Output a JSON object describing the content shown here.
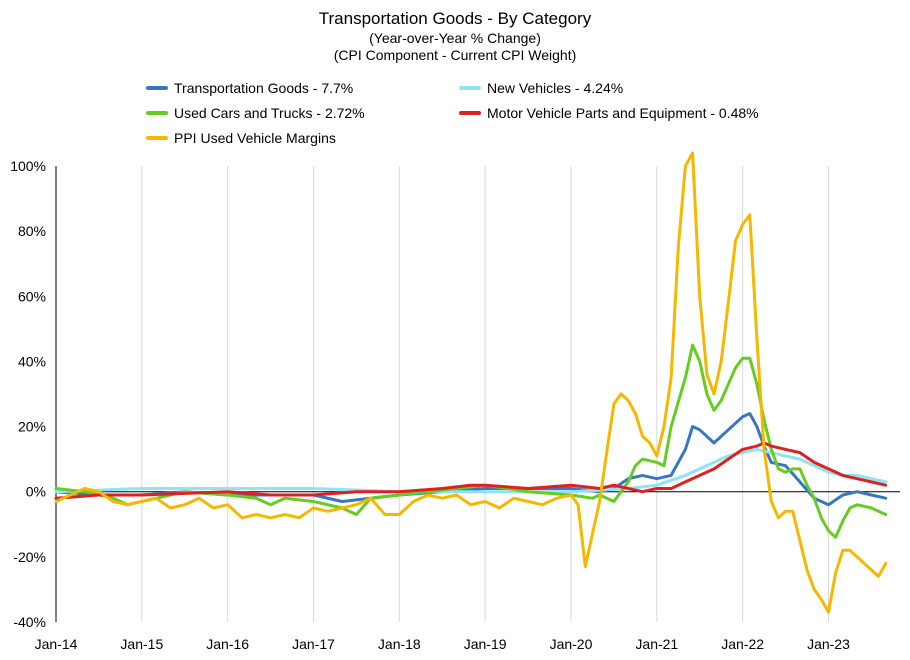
{
  "chart_data": {
    "type": "line",
    "title": "Transportation Goods - By Category",
    "subtitle1": "(Year-over-Year % Change)",
    "subtitle2": "(CPI Component - Current CPI Weight)",
    "xlabel": "",
    "ylabel": "",
    "ylim": [
      -40,
      100
    ],
    "ytick_values": [
      -40,
      -20,
      0,
      20,
      40,
      60,
      80,
      100
    ],
    "ytick_labels": [
      "-40%",
      "-20%",
      "0%",
      "20%",
      "40%",
      "60%",
      "80%",
      "100%"
    ],
    "xlim": [
      0,
      118
    ],
    "xtick_values": [
      0,
      12,
      24,
      36,
      48,
      60,
      72,
      84,
      96,
      108
    ],
    "xtick_labels": [
      "Jan-14",
      "Jan-15",
      "Jan-16",
      "Jan-17",
      "Jan-18",
      "Jan-19",
      "Jan-20",
      "Jan-21",
      "Jan-22",
      "Jan-23"
    ],
    "x_unit": "months since Jan-14",
    "grid": "vertical",
    "legend_position": "top",
    "series": [
      {
        "name": "Transportation Goods - 7.7%",
        "color": "#3a75c4",
        "points": [
          [
            0,
            0
          ],
          [
            6,
            -1
          ],
          [
            12,
            -1
          ],
          [
            18,
            0
          ],
          [
            24,
            -1
          ],
          [
            30,
            -1
          ],
          [
            36,
            -1
          ],
          [
            40,
            -3
          ],
          [
            44,
            -2
          ],
          [
            48,
            -1
          ],
          [
            54,
            0
          ],
          [
            60,
            1
          ],
          [
            66,
            1
          ],
          [
            72,
            1
          ],
          [
            76,
            0
          ],
          [
            78,
            1
          ],
          [
            80,
            4
          ],
          [
            82,
            5
          ],
          [
            84,
            4
          ],
          [
            86,
            5
          ],
          [
            88,
            13
          ],
          [
            89,
            20
          ],
          [
            90,
            19
          ],
          [
            92,
            15
          ],
          [
            94,
            19
          ],
          [
            96,
            23
          ],
          [
            97,
            24
          ],
          [
            98,
            20
          ],
          [
            99,
            14
          ],
          [
            100,
            9
          ],
          [
            102,
            8
          ],
          [
            104,
            3
          ],
          [
            106,
            -2
          ],
          [
            108,
            -4
          ],
          [
            110,
            -1
          ],
          [
            112,
            0
          ],
          [
            114,
            -1
          ],
          [
            116,
            -2
          ]
        ]
      },
      {
        "name": "New Vehicles - 4.24%",
        "color": "#8ee4f4",
        "points": [
          [
            0,
            0
          ],
          [
            12,
            1
          ],
          [
            24,
            1
          ],
          [
            36,
            1
          ],
          [
            48,
            0
          ],
          [
            60,
            0
          ],
          [
            72,
            0
          ],
          [
            80,
            1
          ],
          [
            84,
            2
          ],
          [
            88,
            5
          ],
          [
            90,
            7
          ],
          [
            92,
            9
          ],
          [
            94,
            11
          ],
          [
            96,
            12
          ],
          [
            98,
            13
          ],
          [
            100,
            12
          ],
          [
            102,
            11
          ],
          [
            104,
            10
          ],
          [
            106,
            8
          ],
          [
            108,
            6
          ],
          [
            110,
            5
          ],
          [
            112,
            5
          ],
          [
            114,
            4
          ],
          [
            116,
            3
          ]
        ]
      },
      {
        "name": "Used Cars and Trucks - 2.72%",
        "color": "#66cc22",
        "points": [
          [
            0,
            1
          ],
          [
            4,
            0
          ],
          [
            8,
            -2
          ],
          [
            10,
            -4
          ],
          [
            12,
            -3
          ],
          [
            18,
            0
          ],
          [
            24,
            -1
          ],
          [
            28,
            -2
          ],
          [
            30,
            -4
          ],
          [
            32,
            -2
          ],
          [
            36,
            -3
          ],
          [
            40,
            -5
          ],
          [
            42,
            -7
          ],
          [
            44,
            -2
          ],
          [
            48,
            -1
          ],
          [
            56,
            1
          ],
          [
            60,
            2
          ],
          [
            66,
            0
          ],
          [
            72,
            -1
          ],
          [
            75,
            -2
          ],
          [
            76,
            -1
          ],
          [
            78,
            -3
          ],
          [
            79,
            0
          ],
          [
            80,
            3
          ],
          [
            81,
            8
          ],
          [
            82,
            10
          ],
          [
            84,
            9
          ],
          [
            85,
            8
          ],
          [
            86,
            20
          ],
          [
            88,
            35
          ],
          [
            89,
            45
          ],
          [
            90,
            40
          ],
          [
            91,
            30
          ],
          [
            92,
            25
          ],
          [
            93,
            28
          ],
          [
            94,
            33
          ],
          [
            95,
            38
          ],
          [
            96,
            41
          ],
          [
            97,
            41
          ],
          [
            98,
            33
          ],
          [
            99,
            22
          ],
          [
            100,
            13
          ],
          [
            101,
            7
          ],
          [
            102,
            6
          ],
          [
            103,
            7
          ],
          [
            104,
            7
          ],
          [
            105,
            2
          ],
          [
            106,
            -2
          ],
          [
            107,
            -8
          ],
          [
            108,
            -12
          ],
          [
            109,
            -14
          ],
          [
            110,
            -9
          ],
          [
            111,
            -5
          ],
          [
            112,
            -4
          ],
          [
            114,
            -5
          ],
          [
            116,
            -7
          ]
        ]
      },
      {
        "name": "Motor Vehicle Parts and Equipment - 0.48%",
        "color": "#e02020",
        "points": [
          [
            0,
            -2
          ],
          [
            6,
            -1
          ],
          [
            12,
            -1
          ],
          [
            24,
            0
          ],
          [
            30,
            -1
          ],
          [
            36,
            -1
          ],
          [
            42,
            0
          ],
          [
            48,
            0
          ],
          [
            54,
            1
          ],
          [
            58,
            2
          ],
          [
            60,
            2
          ],
          [
            66,
            1
          ],
          [
            72,
            2
          ],
          [
            76,
            1
          ],
          [
            78,
            2
          ],
          [
            80,
            1
          ],
          [
            82,
            0
          ],
          [
            84,
            1
          ],
          [
            86,
            1
          ],
          [
            88,
            3
          ],
          [
            90,
            5
          ],
          [
            92,
            7
          ],
          [
            94,
            10
          ],
          [
            96,
            13
          ],
          [
            98,
            14
          ],
          [
            99,
            15
          ],
          [
            100,
            14
          ],
          [
            102,
            13
          ],
          [
            104,
            12
          ],
          [
            106,
            9
          ],
          [
            108,
            7
          ],
          [
            110,
            5
          ],
          [
            112,
            4
          ],
          [
            114,
            3
          ],
          [
            116,
            2
          ]
        ]
      },
      {
        "name": "PPI Used Vehicle Margins",
        "color": "#f5b800",
        "points": [
          [
            0,
            -3
          ],
          [
            3,
            0
          ],
          [
            4,
            1
          ],
          [
            6,
            0
          ],
          [
            8,
            -3
          ],
          [
            10,
            -4
          ],
          [
            12,
            -3
          ],
          [
            14,
            -2
          ],
          [
            16,
            -5
          ],
          [
            18,
            -4
          ],
          [
            20,
            -2
          ],
          [
            22,
            -5
          ],
          [
            24,
            -4
          ],
          [
            26,
            -8
          ],
          [
            28,
            -7
          ],
          [
            30,
            -8
          ],
          [
            32,
            -7
          ],
          [
            34,
            -8
          ],
          [
            36,
            -5
          ],
          [
            38,
            -6
          ],
          [
            40,
            -5
          ],
          [
            42,
            -4
          ],
          [
            44,
            -2
          ],
          [
            46,
            -7
          ],
          [
            48,
            -7
          ],
          [
            50,
            -3
          ],
          [
            52,
            -1
          ],
          [
            54,
            -2
          ],
          [
            56,
            -1
          ],
          [
            58,
            -4
          ],
          [
            60,
            -3
          ],
          [
            62,
            -5
          ],
          [
            64,
            -2
          ],
          [
            66,
            -3
          ],
          [
            68,
            -4
          ],
          [
            70,
            -2
          ],
          [
            72,
            -1
          ],
          [
            73,
            -4
          ],
          [
            74,
            -23
          ],
          [
            75,
            -13
          ],
          [
            76,
            -3
          ],
          [
            77,
            12
          ],
          [
            78,
            27
          ],
          [
            79,
            30
          ],
          [
            80,
            28
          ],
          [
            81,
            24
          ],
          [
            82,
            17
          ],
          [
            83,
            15
          ],
          [
            84,
            11
          ],
          [
            85,
            20
          ],
          [
            86,
            35
          ],
          [
            87,
            75
          ],
          [
            88,
            100
          ],
          [
            89,
            104
          ],
          [
            90,
            60
          ],
          [
            91,
            36
          ],
          [
            92,
            30
          ],
          [
            93,
            40
          ],
          [
            94,
            58
          ],
          [
            95,
            77
          ],
          [
            96,
            82
          ],
          [
            97,
            85
          ],
          [
            98,
            47
          ],
          [
            99,
            13
          ],
          [
            100,
            -3
          ],
          [
            101,
            -8
          ],
          [
            102,
            -6
          ],
          [
            103,
            -6
          ],
          [
            104,
            -15
          ],
          [
            105,
            -24
          ],
          [
            106,
            -30
          ],
          [
            107,
            -33
          ],
          [
            108,
            -37
          ],
          [
            109,
            -25
          ],
          [
            110,
            -18
          ],
          [
            111,
            -18
          ],
          [
            112,
            -20
          ],
          [
            113,
            -22
          ],
          [
            114,
            -24
          ],
          [
            115,
            -26
          ],
          [
            116,
            -22
          ]
        ]
      }
    ]
  }
}
